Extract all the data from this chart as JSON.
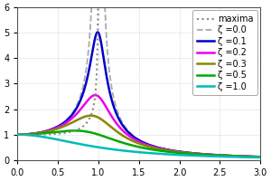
{
  "xlim": [
    0.0,
    3.0
  ],
  "ylim": [
    0.0,
    6.0
  ],
  "xticks": [
    0.0,
    0.5,
    1.0,
    1.5,
    2.0,
    2.5,
    3.0
  ],
  "yticks": [
    0,
    1,
    2,
    3,
    4,
    5,
    6
  ],
  "zetas": [
    0.0,
    0.1,
    0.2,
    0.3,
    0.5,
    1.0
  ],
  "colors": [
    "#aaaaaa",
    "#0000cc",
    "#ee00ee",
    "#888800",
    "#00aa00",
    "#00bbbb"
  ],
  "linestyles": [
    "--",
    "-",
    "-",
    "-",
    "-",
    "-"
  ],
  "linewidths": [
    1.3,
    1.8,
    1.8,
    1.8,
    1.8,
    1.8
  ],
  "labels": [
    "ζ =0.0",
    "ζ =0.1",
    "ζ =0.2",
    "ζ =0.3",
    "ζ =0.5",
    "ζ =1.0"
  ],
  "maxima_color": "#888888",
  "maxima_label": "maxima",
  "background_color": "#ffffff",
  "grid_color": "#aaaaaa",
  "legend_fontsize": 7,
  "tick_fontsize": 7,
  "figsize": [
    3.0,
    2.0
  ],
  "dpi": 100
}
